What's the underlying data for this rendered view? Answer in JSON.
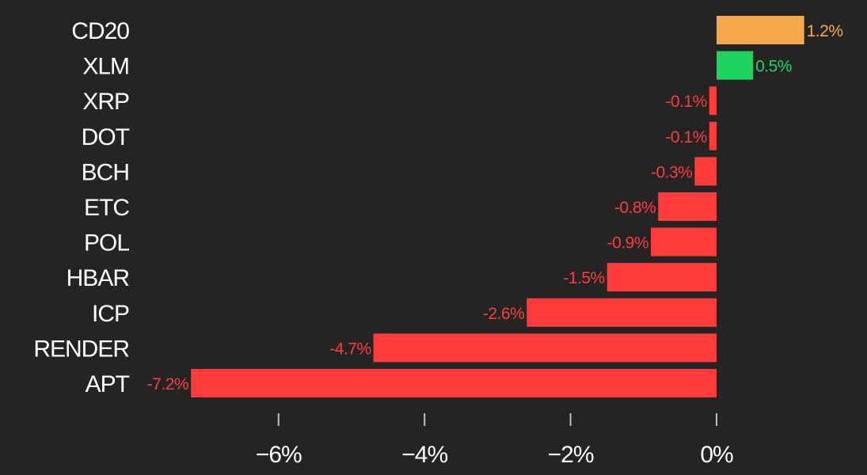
{
  "chart_data": {
    "type": "bar",
    "orientation": "horizontal",
    "categories": [
      "CD20",
      "XLM",
      "XRP",
      "DOT",
      "BCH",
      "ETC",
      "POL",
      "HBAR",
      "ICP",
      "RENDER",
      "APT"
    ],
    "values": [
      1.2,
      0.5,
      -0.1,
      -0.1,
      -0.3,
      -0.8,
      -0.9,
      -1.5,
      -2.6,
      -4.7,
      -7.2
    ],
    "value_labels": [
      "1.2%",
      "0.5%",
      "-0.1%",
      "-0.1%",
      "-0.3%",
      "-0.8%",
      "-0.9%",
      "-1.5%",
      "-2.6%",
      "-4.7%",
      "-7.2%"
    ],
    "bar_colors": [
      "#F7A84A",
      "#1FD35F",
      "#FF3B3B",
      "#FF3B3B",
      "#FF3B3B",
      "#FF3B3B",
      "#FF3B3B",
      "#FF3B3B",
      "#FF3B3B",
      "#FF3B3B",
      "#FF3B3B"
    ],
    "label_colors": [
      "#F7A84A",
      "#1FD35F",
      "#FF3B3B",
      "#FF3B3B",
      "#FF3B3B",
      "#FF3B3B",
      "#FF3B3B",
      "#FF3B3B",
      "#FF3B3B",
      "#FF3B3B",
      "#FF3B3B"
    ],
    "xticks": [
      -6,
      -4,
      -2,
      0
    ],
    "xtick_labels": [
      "−6%",
      "−4%",
      "−2%",
      "0%"
    ],
    "xlim": [
      -7.8,
      1.7
    ],
    "title": "",
    "xlabel": "",
    "ylabel": "",
    "grid": false,
    "legend": "none",
    "colors": {
      "background": "#242424",
      "text": "#FFFFFF",
      "tick": "#BFBFBF"
    }
  }
}
